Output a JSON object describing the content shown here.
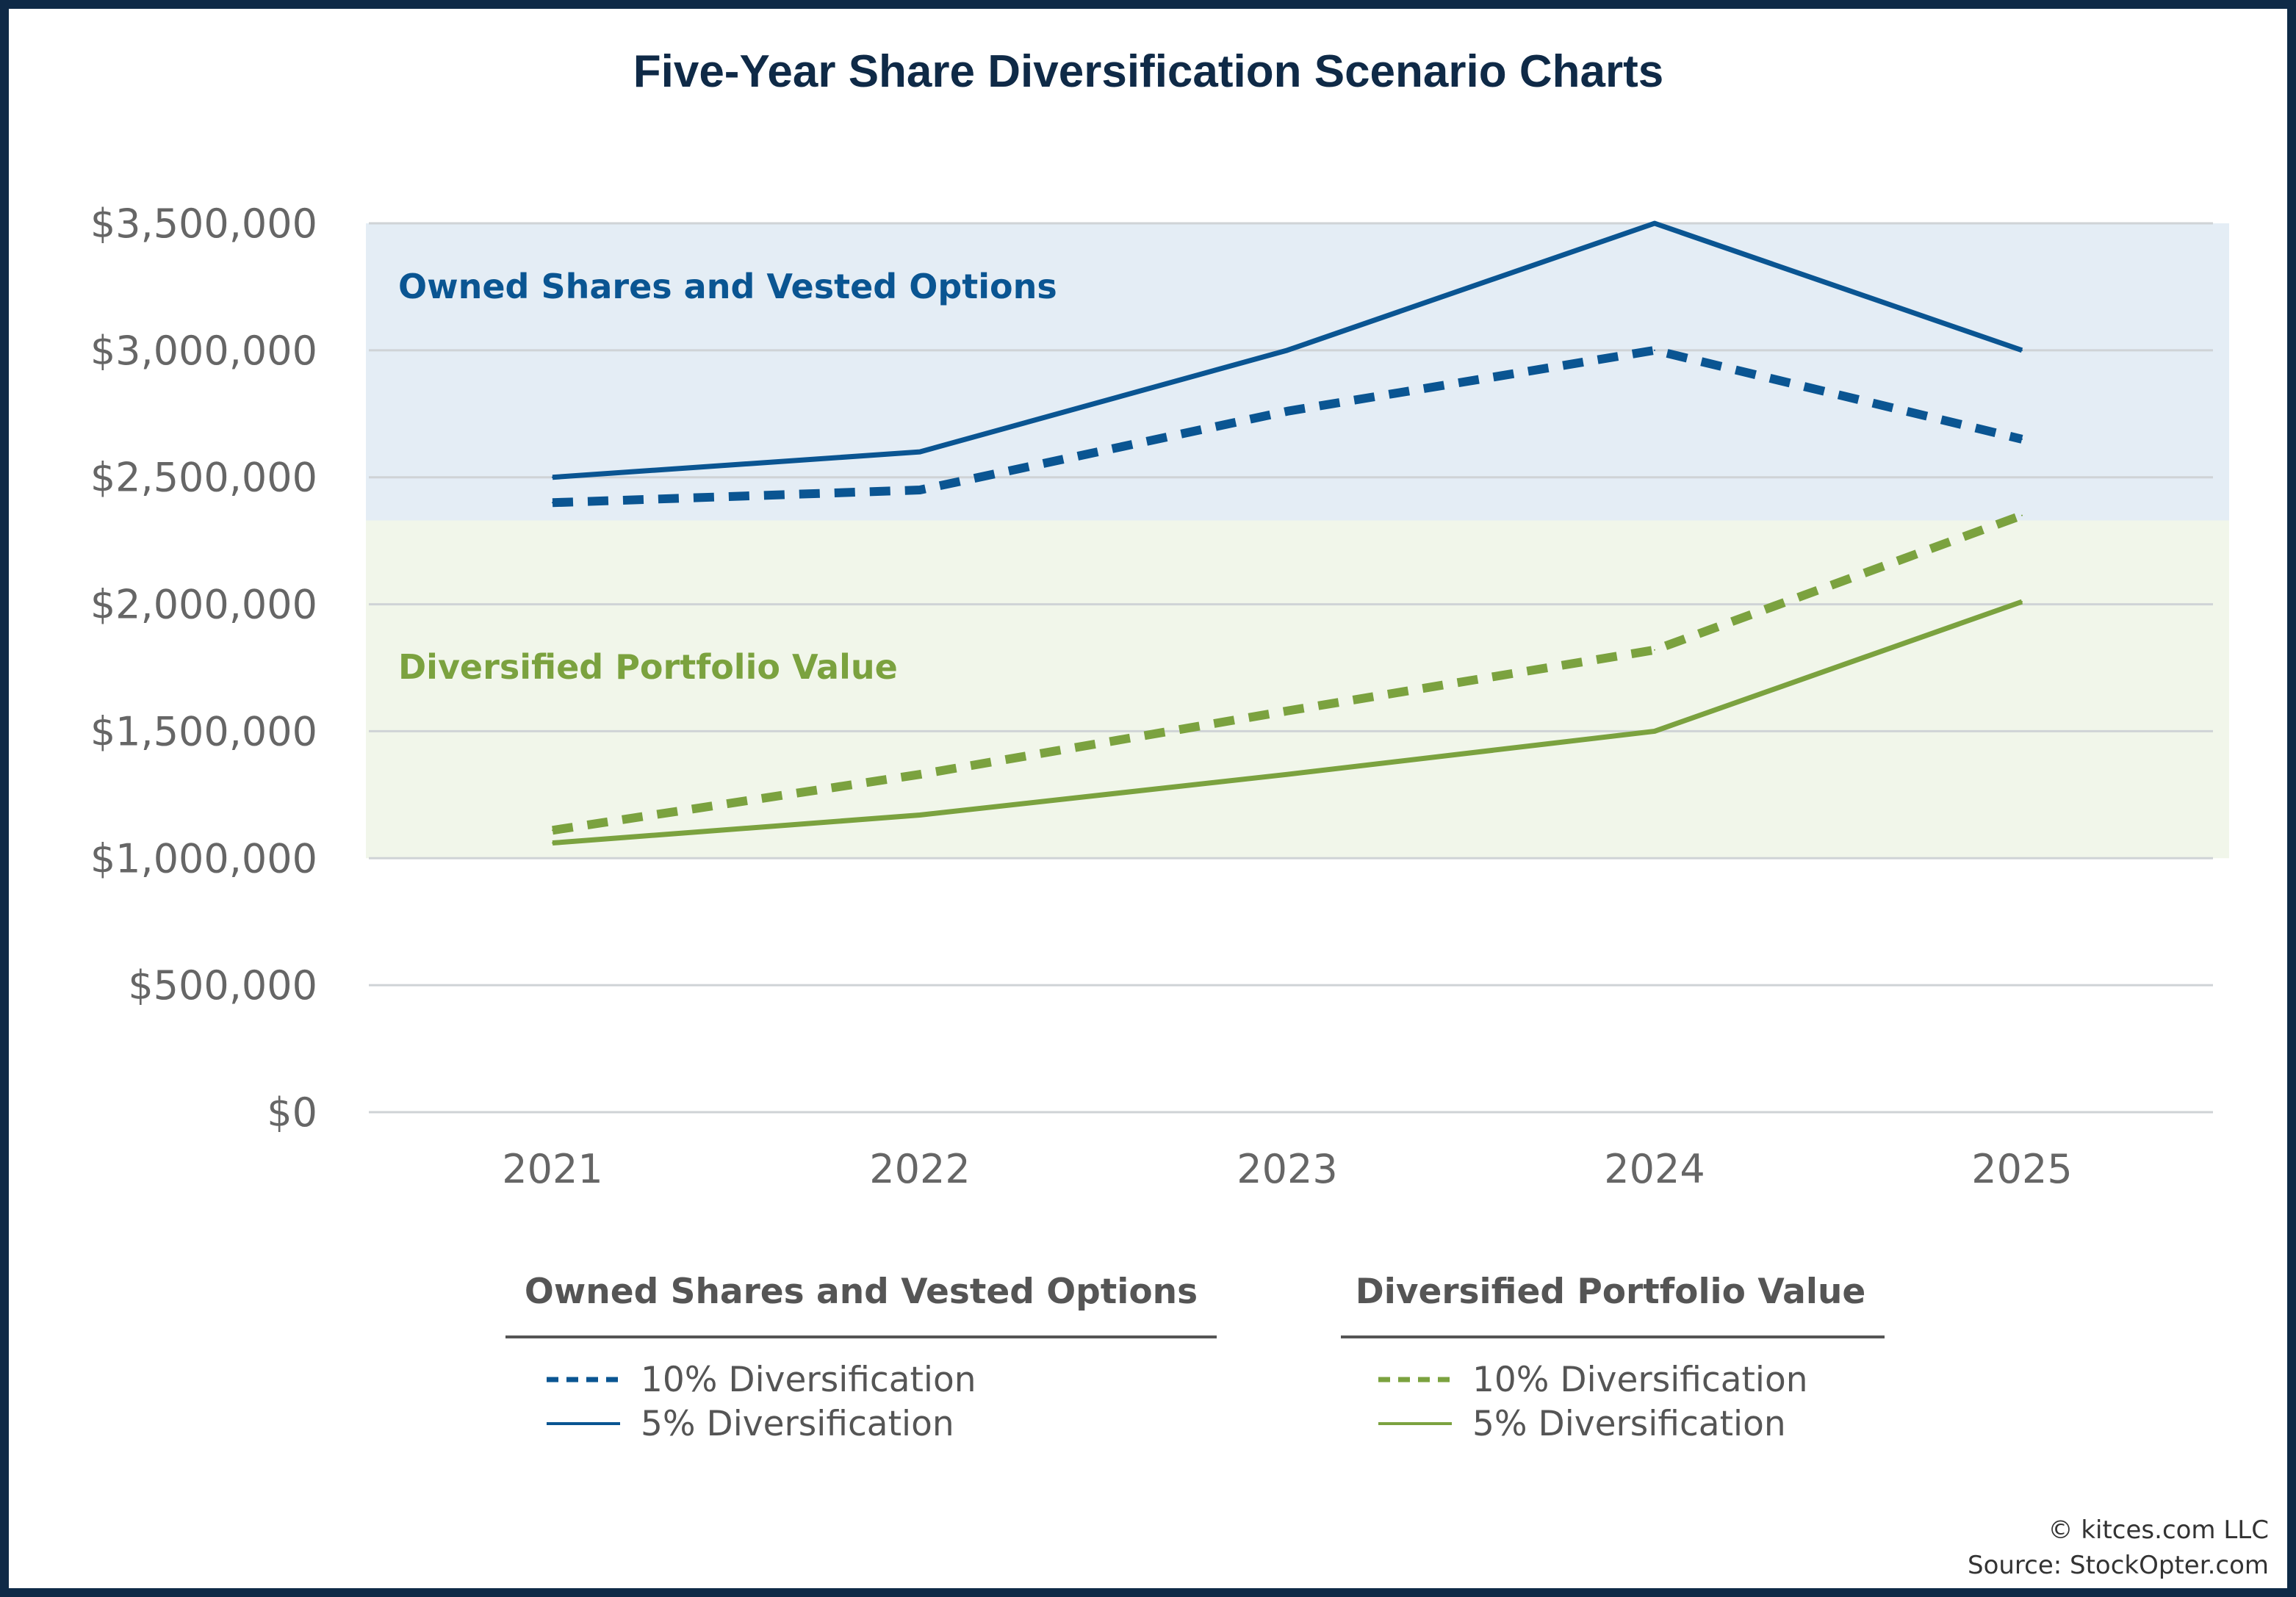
{
  "chart_data": {
    "type": "line",
    "title": "Five-Year Share Diversification Scenario Charts",
    "x": [
      "2021",
      "2022",
      "2023",
      "2024",
      "2025"
    ],
    "ylim": [
      0,
      3500000
    ],
    "yticks": [
      0,
      500000,
      1000000,
      1500000,
      2000000,
      2500000,
      3000000,
      3500000
    ],
    "ytick_labels": [
      "$0",
      "$500,000",
      "$1,000,000",
      "$1,500,000",
      "$2,000,000",
      "$2,500,000",
      "$3,000,000",
      "$3,500,000"
    ],
    "grid": true,
    "regions": [
      {
        "label": "Owned Shares and Vested Options",
        "ymin": 2330000,
        "ymax": 3500000,
        "color": "#e4edf5",
        "label_color": "#0a5592"
      },
      {
        "label": "Diversified Portfolio Value",
        "ymin": 1000000,
        "ymax": 2330000,
        "color": "#f1f6ea",
        "label_color": "#7ba23f"
      }
    ],
    "series": [
      {
        "group": "Owned Shares and Vested Options",
        "name": "10% Diversification",
        "values": [
          2400000,
          2450000,
          2760000,
          3000000,
          2650000
        ],
        "color": "#0a5592",
        "dash": true
      },
      {
        "group": "Owned Shares and Vested Options",
        "name": "5% Diversification",
        "values": [
          2500000,
          2600000,
          3000000,
          3500000,
          3000000
        ],
        "color": "#0a5592",
        "dash": false
      },
      {
        "group": "Diversified Portfolio Value",
        "name": "10% Diversification",
        "values": [
          1110000,
          1330000,
          1580000,
          1820000,
          2350000
        ],
        "color": "#7ba23f",
        "dash": true
      },
      {
        "group": "Diversified Portfolio Value",
        "name": "5% Diversification",
        "values": [
          1060000,
          1170000,
          1330000,
          1500000,
          2010000
        ],
        "color": "#7ba23f",
        "dash": false
      }
    ],
    "legend": {
      "placement": "bottom",
      "groups": [
        {
          "title": "Owned Shares and Vested Options",
          "items": [
            "10% Diversification",
            "5% Diversification"
          ],
          "color": "#0a5592"
        },
        {
          "title": "Diversified Portfolio Value",
          "items": [
            "10% Diversification",
            "5% Diversification"
          ],
          "color": "#7ba23f"
        }
      ]
    }
  },
  "credits": {
    "copyright": "© kitces.com LLC",
    "source": "Source: StockOpter.com"
  }
}
